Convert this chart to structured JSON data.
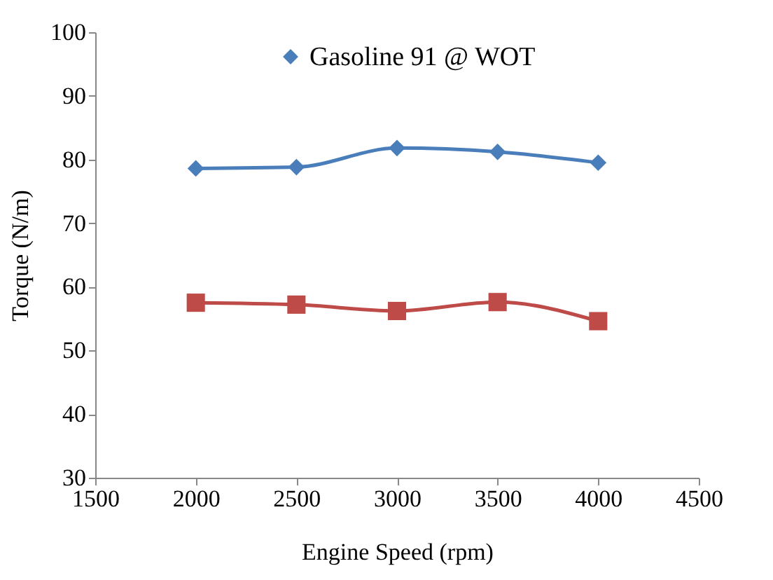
{
  "chart_data": {
    "type": "line",
    "xlabel": "Engine Speed (rpm)",
    "ylabel": "Torque (N/m)",
    "x": [
      2000,
      2500,
      3000,
      3500,
      4000
    ],
    "series": [
      {
        "name": "Gasoline 91 @ WOT",
        "color": "#4a7ebb",
        "marker": "diamond",
        "values": [
          78.6,
          78.8,
          81.8,
          81.2,
          79.5
        ]
      },
      {
        "color": "#be4b48",
        "marker": "square",
        "values": [
          57.5,
          57.2,
          56.2,
          57.6,
          54.6
        ]
      }
    ],
    "xlim": [
      1500,
      4500
    ],
    "xticks": [
      1500,
      2000,
      2500,
      3000,
      3500,
      4000,
      4500
    ],
    "ylim": [
      30,
      100
    ],
    "yticks": [
      30,
      40,
      50,
      60,
      70,
      80,
      90,
      100
    ],
    "grid": false,
    "legend": "top",
    "line_style": "solid"
  }
}
